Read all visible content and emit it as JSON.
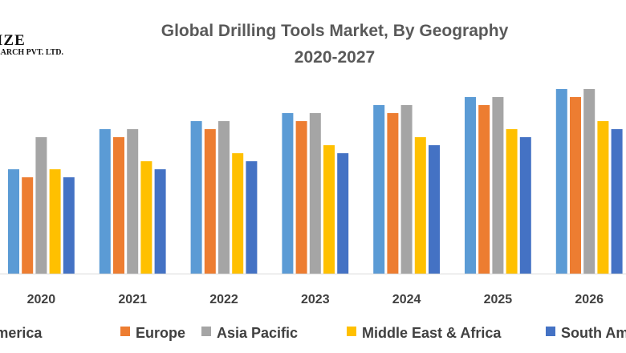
{
  "logo": {
    "line1": "IZE",
    "line2": "EARCH PVT. LTD."
  },
  "chart_data": {
    "type": "bar",
    "title": "Global Drilling Tools Market, By Geography",
    "subtitle": "2020-2027",
    "xlabel": "",
    "ylabel": "",
    "ylim": [
      0,
      25
    ],
    "grid": false,
    "legend_position": "bottom",
    "categories": [
      "2020",
      "2021",
      "2022",
      "2023",
      "2024",
      "2025",
      "2026"
    ],
    "series": [
      {
        "name": "North America",
        "color": "#5B9BD5",
        "values": [
          13,
          18,
          19,
          20,
          21,
          22,
          23
        ]
      },
      {
        "name": "Europe",
        "color": "#ED7D31",
        "values": [
          12,
          17,
          18,
          19,
          20,
          21,
          22
        ]
      },
      {
        "name": "Asia Pacific",
        "color": "#A5A5A5",
        "values": [
          17,
          18,
          19,
          20,
          21,
          22,
          23
        ]
      },
      {
        "name": "Middle East & Africa",
        "color": "#FFC000",
        "values": [
          13,
          14,
          15,
          16,
          17,
          18,
          19
        ]
      },
      {
        "name": "South America",
        "color": "#4472C4",
        "values": [
          12,
          13,
          14,
          15,
          16,
          17,
          18
        ]
      }
    ]
  }
}
